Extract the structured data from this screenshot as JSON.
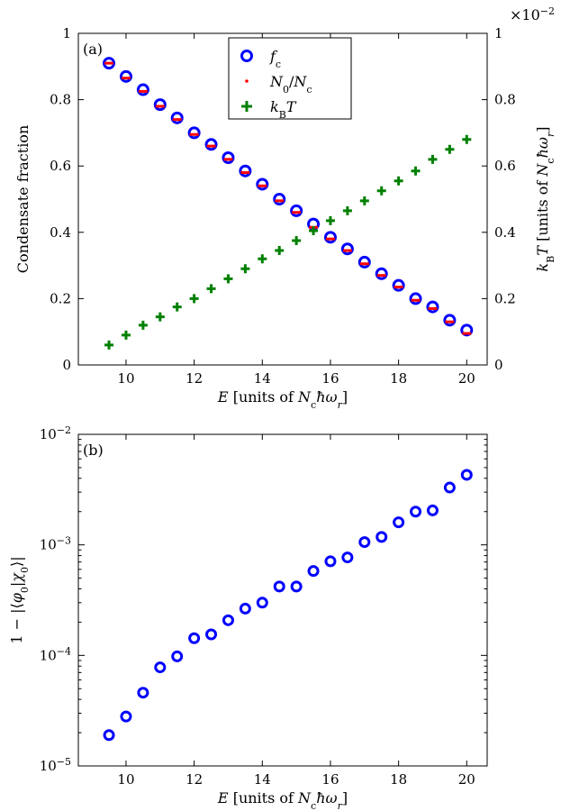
{
  "chart_data": [
    {
      "type": "scatter",
      "panel_label": "(a)",
      "xlabel": "E [units of N_c ħω_r]",
      "ylabel": "Condensate fraction",
      "y2label": "k_B T [units of N_c ħω_r]",
      "y2_multiplier": "×10^-2",
      "xlim": [
        8.6,
        20.6
      ],
      "ylim": [
        0,
        1
      ],
      "y2lim": [
        0,
        1
      ],
      "x_ticks": [
        "10",
        "12",
        "14",
        "16",
        "18",
        "20"
      ],
      "y_ticks": [
        "0",
        "0.2",
        "0.4",
        "0.6",
        "0.8",
        "1"
      ],
      "y2_ticks": [
        "0",
        "0.2",
        "0.4",
        "0.6",
        "0.8",
        "1"
      ],
      "legend_position": "top-center",
      "x": [
        9.5,
        10,
        10.5,
        11,
        11.5,
        12,
        12.5,
        13,
        13.5,
        14,
        14.5,
        15,
        15.5,
        16,
        16.5,
        17,
        17.5,
        18,
        18.5,
        19,
        19.5,
        20
      ],
      "series": [
        {
          "name": "f_c",
          "marker": "circle",
          "color": "#0000ff",
          "axis": "left",
          "values": [
            0.91,
            0.87,
            0.83,
            0.785,
            0.745,
            0.7,
            0.665,
            0.625,
            0.585,
            0.545,
            0.5,
            0.465,
            0.425,
            0.385,
            0.35,
            0.31,
            0.275,
            0.24,
            0.2,
            0.175,
            0.135,
            0.105
          ]
        },
        {
          "name": "N_0/N_c",
          "marker": "dot",
          "color": "#ff0000",
          "axis": "left",
          "values": [
            0.91,
            0.865,
            0.825,
            0.78,
            0.74,
            0.695,
            0.66,
            0.62,
            0.58,
            0.54,
            0.495,
            0.46,
            0.415,
            0.38,
            0.345,
            0.305,
            0.27,
            0.235,
            0.195,
            0.17,
            0.13,
            0.095
          ]
        },
        {
          "name": "k_B T",
          "marker": "plus",
          "color": "#008000",
          "axis": "right",
          "values": [
            0.06,
            0.09,
            0.12,
            0.145,
            0.175,
            0.2,
            0.23,
            0.26,
            0.29,
            0.32,
            0.345,
            0.375,
            0.405,
            0.435,
            0.465,
            0.495,
            0.525,
            0.555,
            0.585,
            0.62,
            0.65,
            0.68
          ]
        }
      ]
    },
    {
      "type": "scatter",
      "panel_label": "(b)",
      "xlabel": "E [units of N_c ħω_r]",
      "ylabel": "1 − |⟨φ_0|χ_0⟩|",
      "yscale": "log",
      "xlim": [
        8.6,
        20.6
      ],
      "ylim": [
        1e-05,
        0.01
      ],
      "x_ticks": [
        "10",
        "12",
        "14",
        "16",
        "18",
        "20"
      ],
      "y_ticks": [
        "10^-5",
        "10^-4",
        "10^-3",
        "10^-2"
      ],
      "x": [
        9.5,
        10,
        10.5,
        11,
        11.5,
        12,
        12.5,
        13,
        13.5,
        14,
        14.5,
        15,
        15.5,
        16,
        16.5,
        17,
        17.5,
        18,
        18.5,
        19,
        19.5,
        20
      ],
      "series": [
        {
          "marker": "circle",
          "color": "#0000ff",
          "values": [
            1.9e-05,
            2.8e-05,
            4.6e-05,
            7.8e-05,
            9.8e-05,
            0.000143,
            0.000155,
            0.000208,
            0.000265,
            0.0003,
            0.00042,
            0.00042,
            0.00058,
            0.00071,
            0.00077,
            0.00106,
            0.00118,
            0.0016,
            0.002,
            0.00205,
            0.0033,
            0.0043
          ]
        }
      ]
    }
  ]
}
